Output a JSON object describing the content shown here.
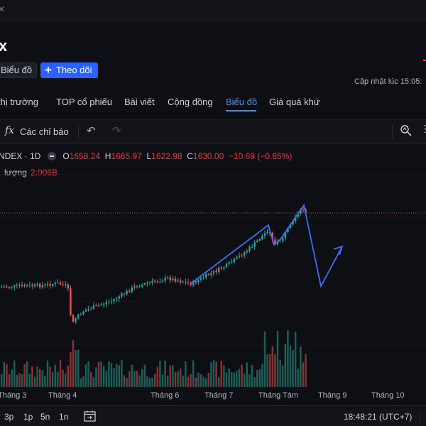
{
  "header": {
    "logo": "x",
    "chart_button": "Biểu đồ",
    "follow_button": "Theo dõi",
    "updated": "Cập nhật lúc  15:05:"
  },
  "tabs": [
    {
      "label": "thị trường"
    },
    {
      "label": "TOP cổ phiếu"
    },
    {
      "label": "Bài viết"
    },
    {
      "label": "Cộng đồng"
    },
    {
      "label": "Biểu đồ",
      "active": true
    },
    {
      "label": "Giá quá khứ"
    }
  ],
  "toolbar": {
    "fx_symbol": "fx",
    "indicators_label": "Các chỉ báo",
    "icons": [
      "indicators-icon",
      "undo-icon",
      "redo-icon",
      "zoom-icon"
    ]
  },
  "legend": {
    "symbol": "NDEX · 1D",
    "open_label": "O",
    "open": "1658.24",
    "high_label": "H",
    "high": "1665.97",
    "low_label": "L",
    "low": "1622.98",
    "close_label": "C",
    "close": "1630.00",
    "change": "−10.69 (−0.65%)",
    "volume_label": "lượng",
    "volume": "2.006B"
  },
  "chart_data": {
    "type": "candlestick",
    "x_ticks": [
      "Tháng 3",
      "Tháng 4",
      "Tháng 6",
      "Tháng 7",
      "Tháng Tám",
      "Tháng 9",
      "Tháng 10"
    ],
    "last_close": 1630.0,
    "volume_last": "2.006B",
    "colors": {
      "up": "#26a69a",
      "down": "#ef5350",
      "annotation": "#3d6ef5",
      "price_line": "#f23645"
    }
  },
  "bottom": {
    "ranges": [
      "3p",
      "1p",
      "5n",
      "1n"
    ],
    "time": "18:48:21 (UTC+7)"
  }
}
